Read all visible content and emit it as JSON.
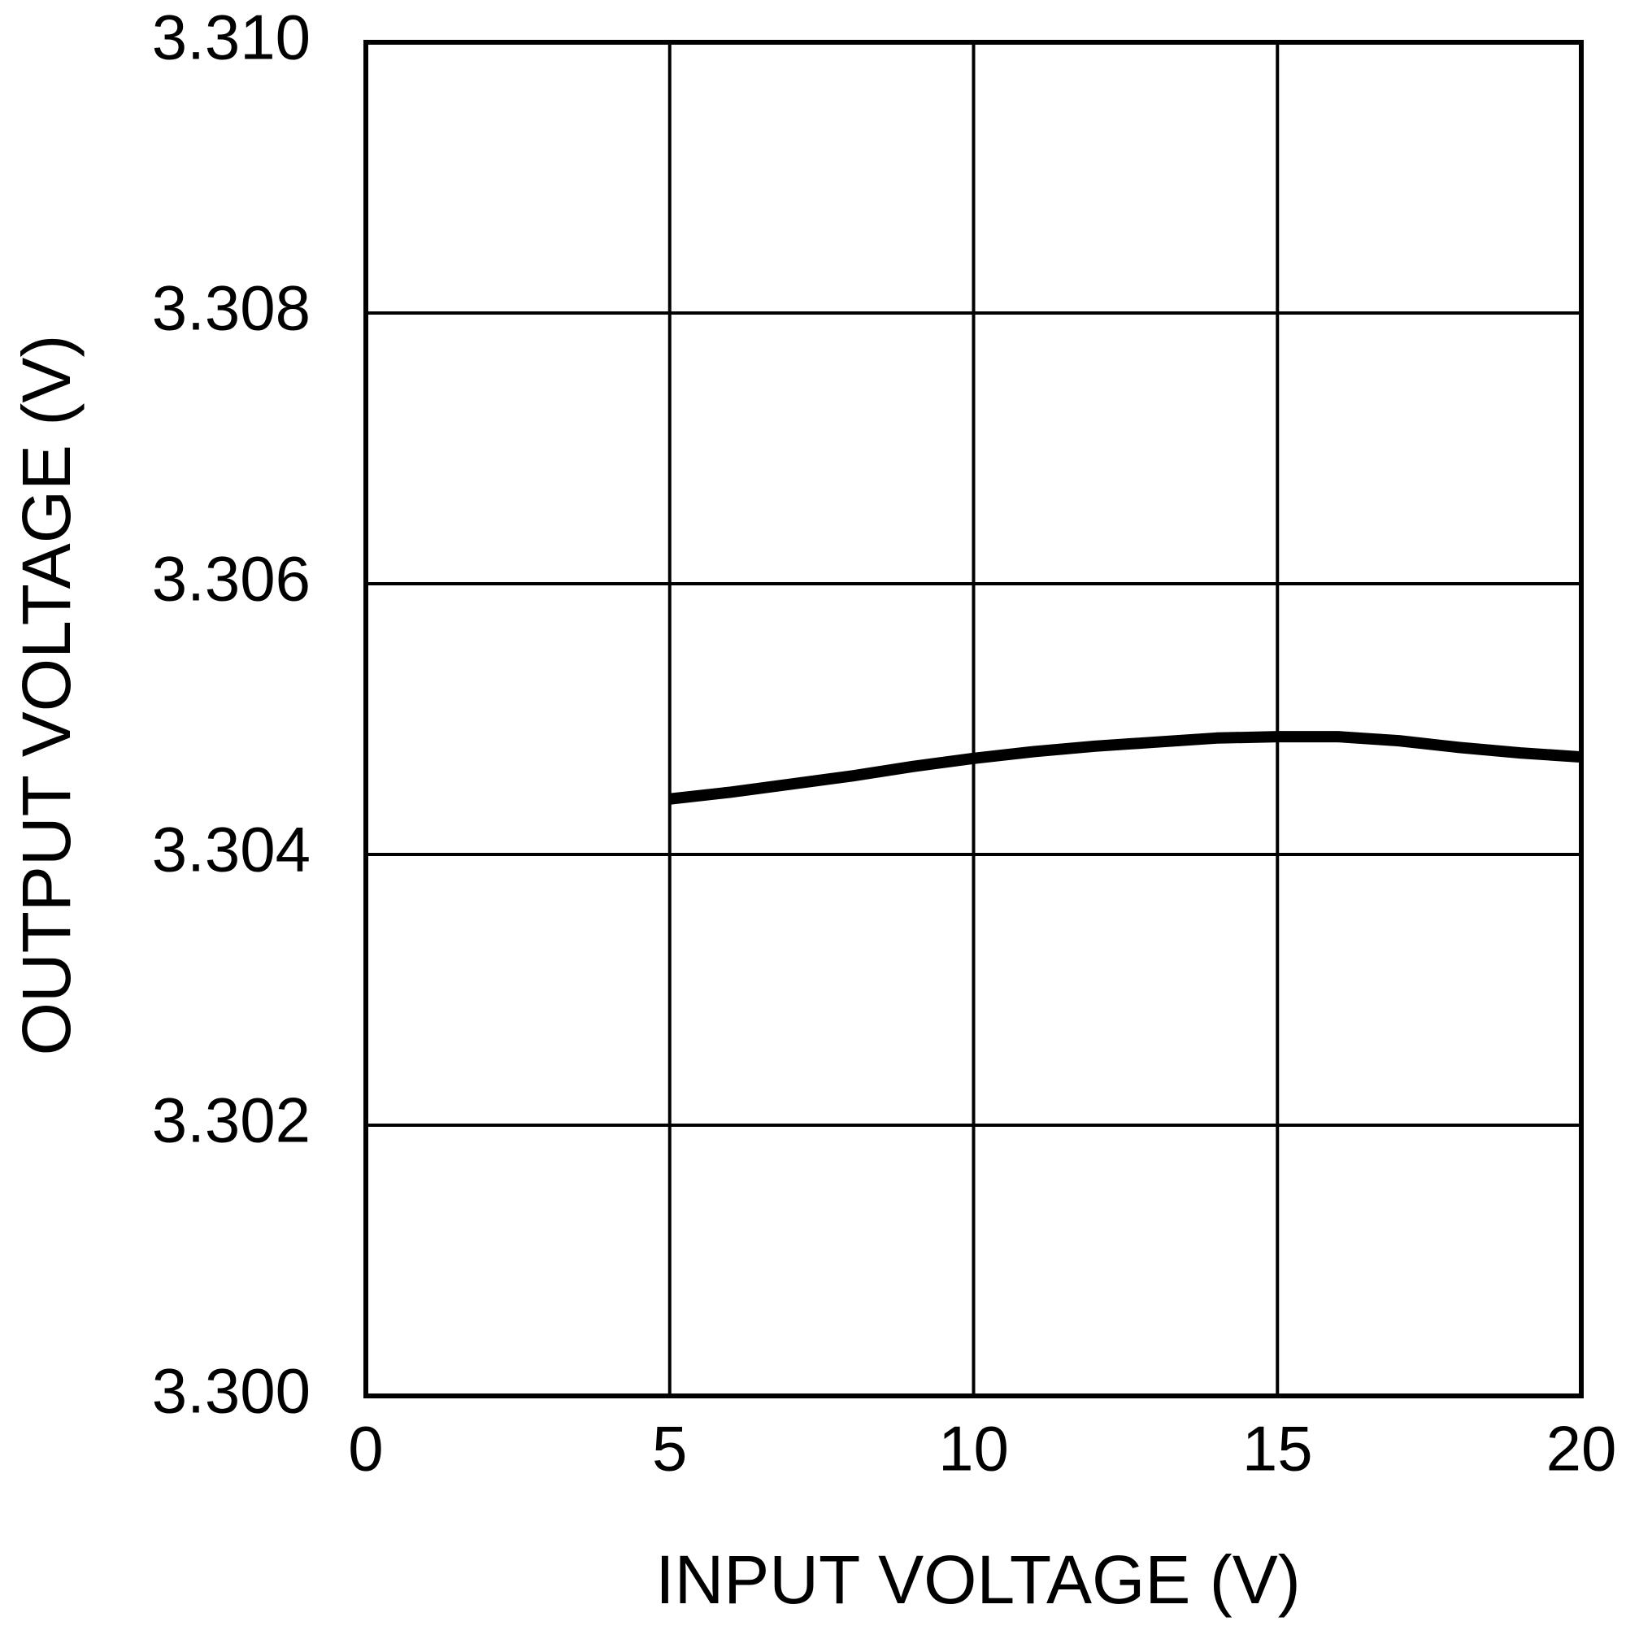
{
  "chart_data": {
    "type": "line",
    "xlabel": "INPUT VOLTAGE (V)",
    "ylabel": "OUTPUT VOLTAGE (V)",
    "x": [
      5,
      6,
      7,
      8,
      9,
      10,
      11,
      12,
      13,
      14,
      15,
      16,
      17,
      18,
      19,
      20
    ],
    "series": [
      {
        "color": "#000000",
        "values": [
          3.30441,
          3.30446,
          3.30452,
          3.30458,
          3.30465,
          3.30471,
          3.30476,
          3.3048,
          3.30483,
          3.30486,
          3.30487,
          3.30487,
          3.30484,
          3.30479,
          3.30475,
          3.30472
        ]
      }
    ],
    "xlim": [
      0,
      20
    ],
    "xticks": [
      0,
      5,
      10,
      15,
      20
    ],
    "ylim": [
      3.3,
      3.31
    ],
    "yticks": [
      {
        "value": 3.3,
        "label": "3.300"
      },
      3.302,
      3.304,
      3.306,
      3.308,
      {
        "value": 3.31,
        "label": "3.310"
      }
    ],
    "grid": true
  }
}
